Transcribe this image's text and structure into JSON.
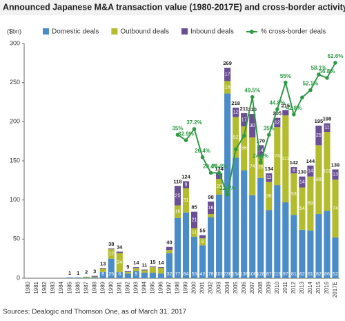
{
  "chart_data": {
    "type": "bar_line",
    "title": "Announced Japanese M&A transaction value (1980-2017E) and cross-border activity",
    "y_label": "($bn)",
    "source": "Sources: Dealogic and Thomson One, as of March 31, 2017",
    "categories": [
      "1980",
      "1981",
      "1982",
      "1983",
      "1984",
      "1985",
      "1986",
      "1987",
      "1988",
      "1989",
      "1990",
      "1991",
      "1992",
      "1993",
      "1994",
      "1995",
      "1996",
      "1997",
      "1998",
      "1999",
      "2000",
      "2001",
      "2002",
      "2003",
      "2004",
      "2005",
      "2006",
      "2007",
      "2008",
      "2009",
      "2010",
      "2011",
      "2012",
      "2013",
      "2014",
      "2015",
      "2016",
      "2017E"
    ],
    "ylim": [
      0,
      300
    ],
    "yticks": [
      0,
      50,
      100,
      150,
      200,
      250,
      300
    ],
    "y2lim": [
      -20,
      70
    ],
    "series": [
      {
        "name": "Domestic deals",
        "color": "#4a8cc8",
        "values": [
          null,
          null,
          null,
          null,
          null,
          1,
          1,
          1,
          1,
          8,
          25,
          8,
          6,
          9,
          7,
          7,
          6,
          32,
          77,
          84,
          53,
          42,
          78,
          107,
          236,
          154,
          138,
          106,
          128,
          87,
          119,
          97,
          81,
          62,
          61,
          82,
          86,
          52
        ]
      },
      {
        "name": "Outbound deals",
        "color": "#b3bc2d",
        "values": [
          null,
          null,
          null,
          null,
          null,
          0,
          0,
          1,
          1,
          4,
          12,
          24,
          2,
          4,
          3,
          7,
          7,
          4,
          16,
          31,
          11,
          9,
          4,
          20,
          16,
          52,
          56,
          74,
          28,
          36,
          74,
          111,
          53,
          54,
          69,
          88,
          101,
          74
        ]
      },
      {
        "name": "Inbound deals",
        "color": "#6b4f95",
        "values": [
          null,
          null,
          null,
          null,
          null,
          0,
          0,
          0,
          1,
          1,
          1,
          2,
          1,
          1,
          1,
          1,
          1,
          4,
          25,
          9,
          21,
          4,
          16,
          7,
          17,
          12,
          17,
          30,
          14,
          11,
          12,
          7,
          8,
          14,
          14,
          25,
          11,
          13
        ]
      },
      {
        "name": "% cross-border deals",
        "color": "#2e9a44",
        "axis": "y2",
        "values": [
          null,
          null,
          null,
          null,
          null,
          null,
          null,
          null,
          null,
          null,
          null,
          null,
          null,
          null,
          null,
          null,
          null,
          null,
          35,
          32.9,
          37.2,
          26.4,
          20.4,
          20.4,
          12.1,
          29.4,
          34.6,
          49.5,
          24.4,
          35,
          44.8,
          55,
          42.8,
          49.3,
          52.1,
          58.1,
          56.8,
          62.6
        ],
        "value_labels": [
          null,
          null,
          null,
          null,
          null,
          null,
          null,
          null,
          null,
          null,
          null,
          null,
          null,
          null,
          null,
          null,
          null,
          null,
          "35%",
          "32.9%",
          "37.2%",
          "26.4%",
          "20.4%",
          "20.4%",
          "12.1%",
          null,
          null,
          "49.5%",
          "24.4%",
          "35%",
          "44.8%",
          "55%",
          "42.8%",
          null,
          "52.1%",
          "58.1%",
          "56.8%",
          "62.6%"
        ]
      }
    ],
    "totals": [
      null,
      null,
      null,
      null,
      null,
      1,
      1,
      2,
      3,
      13,
      38,
      34,
      9,
      14,
      11,
      15,
      14,
      40,
      118,
      124,
      85,
      55,
      98,
      134,
      269,
      218,
      211,
      210,
      170,
      134,
      205,
      215,
      142,
      130,
      144,
      195,
      198,
      139
    ]
  }
}
